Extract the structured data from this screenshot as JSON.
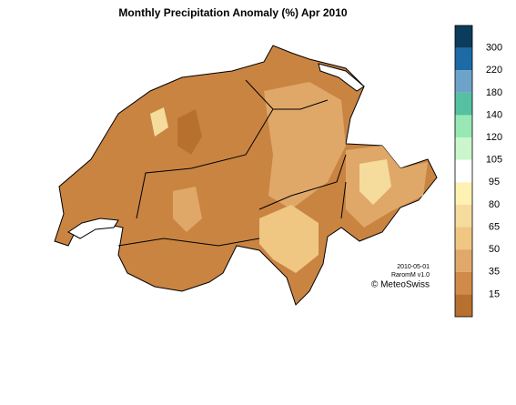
{
  "title": "Monthly Precipitation Anomaly (%) Apr 2010",
  "legend": {
    "labels": [
      300,
      220,
      180,
      140,
      120,
      105,
      95,
      80,
      65,
      50,
      35,
      15
    ],
    "colors": [
      "#0b3c5c",
      "#1c6aa6",
      "#6ea3c9",
      "#55c0a2",
      "#97e8b4",
      "#cbf5cb",
      "#ffffff",
      "#fff1b4",
      "#f5dc9c",
      "#efc682",
      "#e0a86a",
      "#d08a4a",
      "#b8702f"
    ]
  },
  "footer": {
    "date": "2010-05-01",
    "product": "RaromM v1.0",
    "credit": "© MeteoSwiss"
  }
}
